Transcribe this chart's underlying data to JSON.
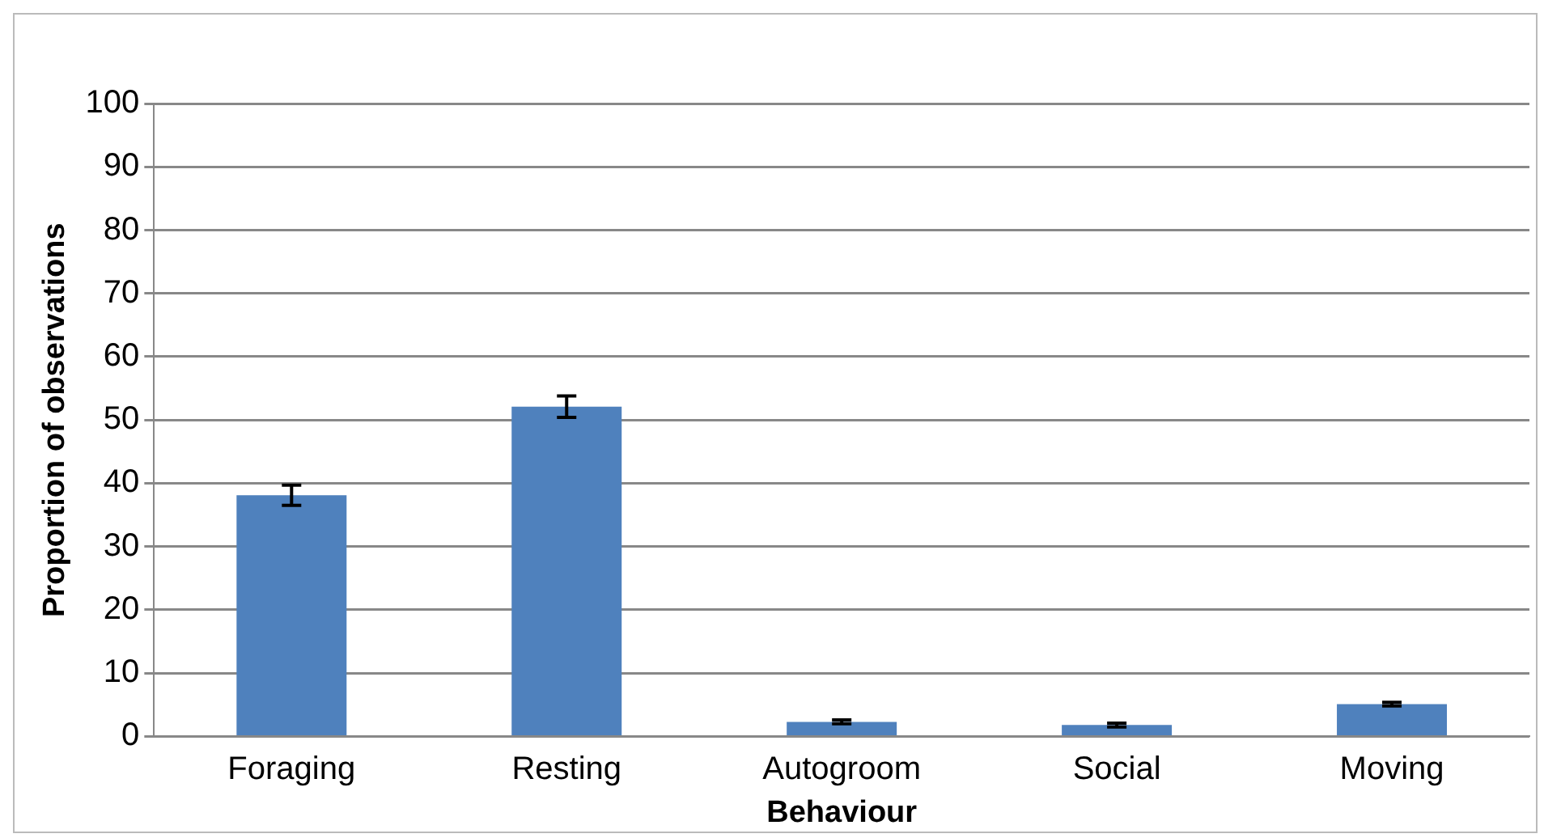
{
  "chart_data": {
    "type": "bar",
    "xlabel": "Behaviour",
    "ylabel": "Proportion of observations",
    "categories": [
      "Foraging",
      "Resting",
      "Autogroom",
      "Social",
      "Moving"
    ],
    "values": [
      38.1,
      52.1,
      2.3,
      1.8,
      5.1
    ],
    "errors": [
      1.6,
      1.7,
      0.3,
      0.3,
      0.3
    ],
    "color": "#4f81bd",
    "ylim": [
      0,
      100
    ],
    "yticks": [
      0,
      10,
      20,
      30,
      40,
      50,
      60,
      70,
      80,
      90,
      100
    ],
    "grid": "y",
    "legend": false
  }
}
